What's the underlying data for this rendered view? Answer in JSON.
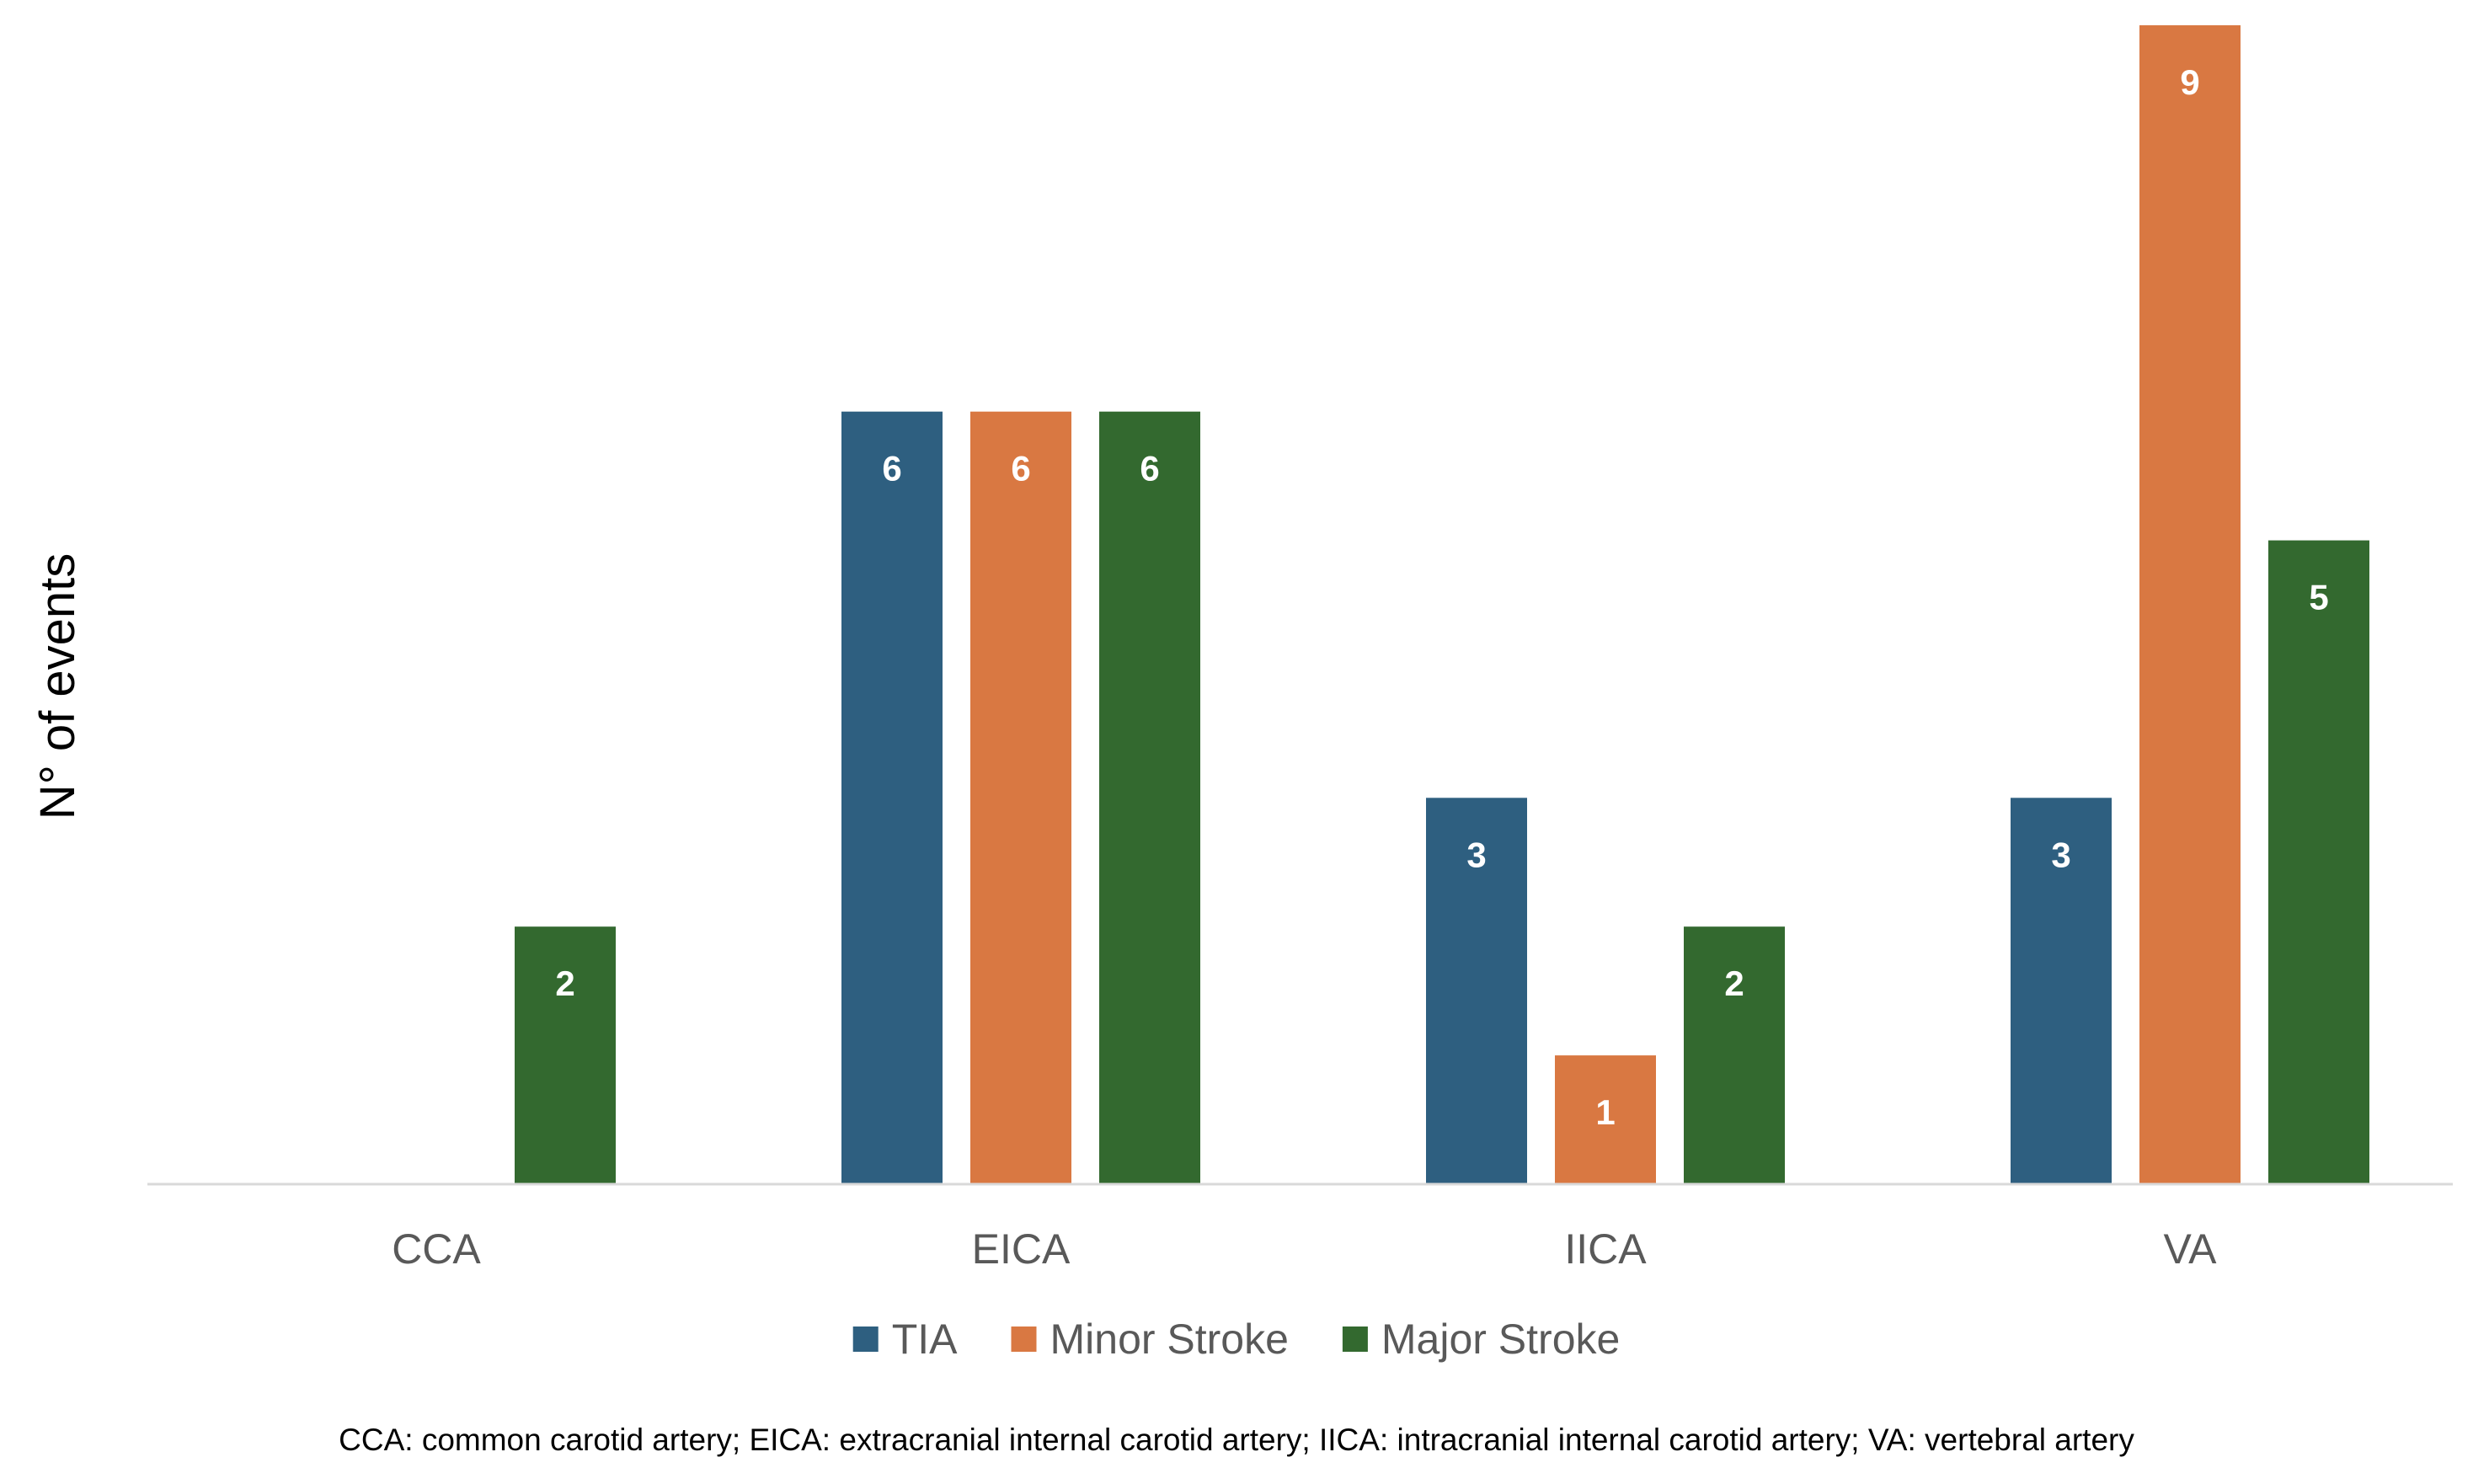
{
  "chart_data": {
    "type": "bar",
    "title": "",
    "xlabel": "",
    "ylabel": "N° of events",
    "categories": [
      "CCA",
      "EICA",
      "IICA",
      "VA"
    ],
    "series": [
      {
        "name": "TIA",
        "color": "#2E5F80",
        "values": [
          0,
          6,
          3,
          3
        ]
      },
      {
        "name": "Minor Stroke",
        "color": "#D97842",
        "values": [
          0,
          6,
          1,
          9
        ]
      },
      {
        "name": "Major Stroke",
        "color": "#33692F",
        "values": [
          2,
          6,
          2,
          5
        ]
      }
    ],
    "ylim": [
      0,
      9
    ],
    "grid": false,
    "legend_position": "bottom",
    "data_labels": true,
    "footnote": "CCA: common carotid artery; EICA: extracranial internal carotid artery; IICA: intracranial internal carotid artery; VA: vertebral artery"
  }
}
